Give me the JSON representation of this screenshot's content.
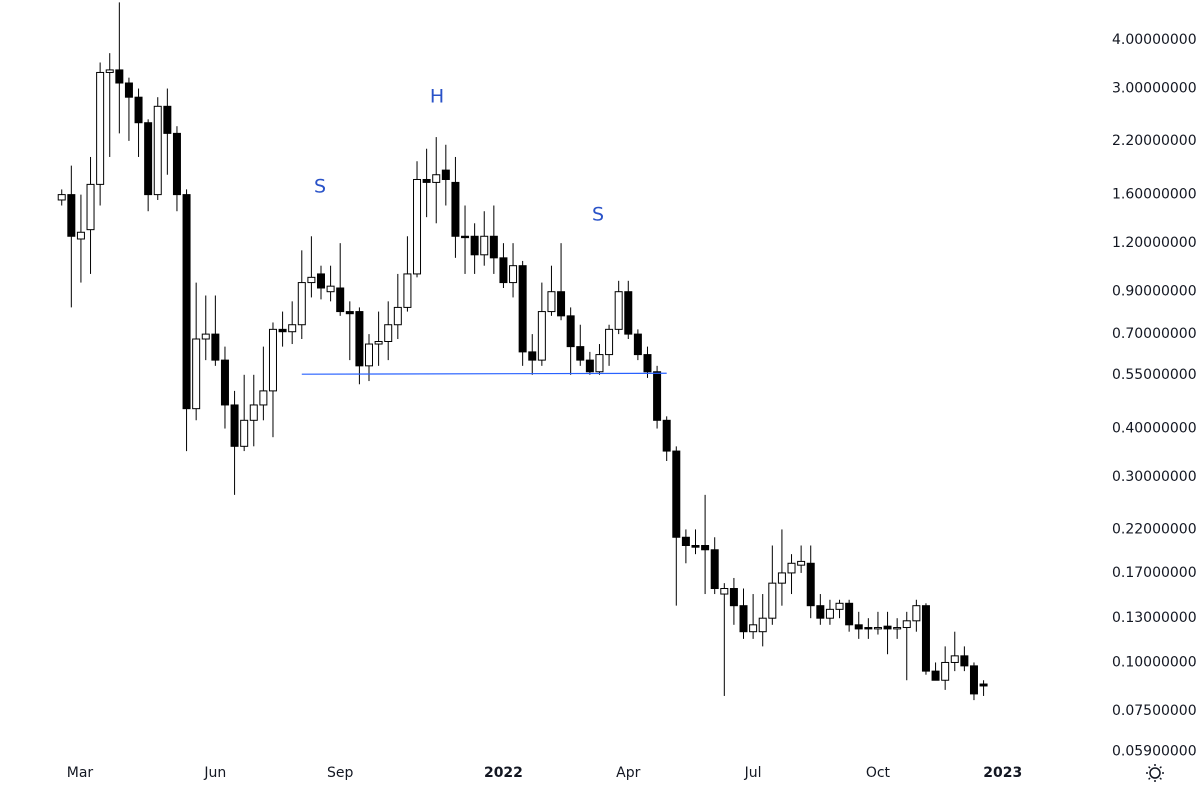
{
  "chart_data": {
    "type": "candlestick",
    "log_y": true,
    "ylim": [
      0.0561,
      5.07
    ],
    "yticks": [
      {
        "value": 4,
        "label": "4.00000000"
      },
      {
        "value": 3,
        "label": "3.00000000"
      },
      {
        "value": 2.2,
        "label": "2.20000000"
      },
      {
        "value": 1.6,
        "label": "1.60000000"
      },
      {
        "value": 1.2,
        "label": "1.20000000"
      },
      {
        "value": 0.9,
        "label": "0.90000000"
      },
      {
        "value": 0.7,
        "label": "0.70000000"
      },
      {
        "value": 0.55,
        "label": "0.55000000"
      },
      {
        "value": 0.4,
        "label": "0.40000000"
      },
      {
        "value": 0.3,
        "label": "0.30000000"
      },
      {
        "value": 0.22,
        "label": "0.22000000"
      },
      {
        "value": 0.17,
        "label": "0.17000000"
      },
      {
        "value": 0.13,
        "label": "0.13000000"
      },
      {
        "value": 0.1,
        "label": "0.10000000"
      },
      {
        "value": 0.075,
        "label": "0.07500000"
      },
      {
        "value": 0.059,
        "label": "0.05900000"
      }
    ],
    "xlim": [
      -0.7,
      105
    ],
    "xticks": [
      {
        "value": 1.9,
        "label": "Mar"
      },
      {
        "value": 16,
        "label": "Jun"
      },
      {
        "value": 29,
        "label": "Sep"
      },
      {
        "value": 46,
        "label": "2022"
      },
      {
        "value": 59,
        "label": "Apr"
      },
      {
        "value": 72,
        "label": "Jul"
      },
      {
        "value": 85,
        "label": "Oct"
      },
      {
        "value": 98,
        "label": "2023"
      }
    ],
    "up_color": "#ffffff",
    "down_color": "#000000",
    "wick_color": "#000000",
    "open": [
      1.55,
      1.6,
      1.23,
      1.3,
      1.7,
      3.3,
      3.35,
      3.1,
      2.85,
      2.45,
      1.6,
      2.7,
      2.3,
      1.6,
      0.45,
      0.68,
      0.7,
      0.6,
      0.46,
      0.36,
      0.42,
      0.46,
      0.5,
      0.72,
      0.71,
      0.74,
      0.95,
      1.0,
      0.9,
      0.92,
      0.8,
      0.8,
      0.58,
      0.66,
      0.67,
      0.74,
      0.82,
      1.0,
      1.75,
      1.72,
      1.85,
      1.72,
      1.25,
      1.25,
      1.12,
      1.25,
      1.1,
      0.95,
      1.05,
      0.63,
      0.6,
      0.8,
      0.9,
      0.78,
      0.65,
      0.6,
      0.56,
      0.62,
      0.72,
      0.9,
      0.7,
      0.62,
      0.56,
      0.42,
      0.35,
      0.21,
      0.2,
      0.2,
      0.195,
      0.15,
      0.155,
      0.14,
      0.12,
      0.12,
      0.13,
      0.16,
      0.17,
      0.178,
      0.18,
      0.14,
      0.13,
      0.137,
      0.142,
      0.125,
      0.123,
      0.122,
      0.124,
      0.122,
      0.123,
      0.128,
      0.14,
      0.095,
      0.09,
      0.1,
      0.104,
      0.098,
      0.088
    ],
    "high": [
      1.65,
      1.9,
      1.6,
      2.0,
      3.5,
      3.7,
      5.0,
      3.2,
      3.0,
      2.5,
      2.85,
      3.0,
      2.4,
      1.65,
      0.95,
      0.88,
      0.88,
      0.65,
      0.5,
      0.55,
      0.55,
      0.65,
      0.75,
      0.8,
      0.85,
      1.15,
      1.25,
      1.05,
      1.05,
      1.2,
      0.85,
      0.82,
      0.7,
      0.8,
      0.85,
      1.0,
      1.25,
      1.95,
      2.1,
      2.25,
      2.15,
      2.0,
      1.5,
      1.35,
      1.45,
      1.5,
      1.2,
      1.2,
      1.08,
      0.7,
      0.95,
      1.05,
      1.2,
      0.82,
      0.74,
      0.63,
      0.66,
      0.74,
      0.96,
      0.96,
      0.72,
      0.65,
      0.58,
      0.43,
      0.36,
      0.22,
      0.22,
      0.27,
      0.21,
      0.16,
      0.165,
      0.155,
      0.15,
      0.15,
      0.2,
      0.22,
      0.19,
      0.2,
      0.2,
      0.15,
      0.145,
      0.145,
      0.145,
      0.135,
      0.13,
      0.135,
      0.135,
      0.13,
      0.135,
      0.145,
      0.142,
      0.1,
      0.11,
      0.12,
      0.11,
      0.1,
      0.09
    ],
    "low": [
      1.5,
      0.82,
      0.95,
      1.0,
      1.5,
      2.0,
      2.3,
      2.2,
      2.0,
      1.45,
      1.55,
      1.8,
      1.45,
      0.35,
      0.42,
      0.6,
      0.58,
      0.4,
      0.27,
      0.35,
      0.36,
      0.42,
      0.38,
      0.65,
      0.66,
      0.68,
      0.87,
      0.86,
      0.85,
      0.78,
      0.6,
      0.52,
      0.53,
      0.58,
      0.6,
      0.68,
      0.8,
      0.98,
      1.4,
      1.35,
      1.5,
      1.1,
      1.0,
      1.0,
      1.05,
      1.0,
      0.92,
      0.87,
      0.58,
      0.55,
      0.58,
      0.78,
      0.76,
      0.55,
      0.58,
      0.55,
      0.55,
      0.58,
      0.7,
      0.68,
      0.6,
      0.54,
      0.4,
      0.33,
      0.14,
      0.18,
      0.19,
      0.15,
      0.15,
      0.082,
      0.125,
      0.115,
      0.115,
      0.11,
      0.125,
      0.14,
      0.15,
      0.17,
      0.13,
      0.125,
      0.125,
      0.13,
      0.12,
      0.115,
      0.115,
      0.118,
      0.105,
      0.115,
      0.09,
      0.12,
      0.093,
      0.09,
      0.085,
      0.095,
      0.095,
      0.08,
      0.082
    ],
    "close": [
      1.6,
      1.25,
      1.28,
      1.7,
      3.3,
      3.35,
      3.1,
      2.85,
      2.45,
      1.6,
      2.7,
      2.3,
      1.6,
      0.45,
      0.68,
      0.7,
      0.6,
      0.46,
      0.36,
      0.42,
      0.46,
      0.5,
      0.72,
      0.71,
      0.74,
      0.95,
      0.98,
      0.92,
      0.93,
      0.8,
      0.79,
      0.58,
      0.66,
      0.67,
      0.74,
      0.82,
      1.0,
      1.75,
      1.72,
      1.8,
      1.75,
      1.25,
      1.24,
      1.12,
      1.25,
      1.1,
      0.95,
      1.05,
      0.63,
      0.6,
      0.8,
      0.9,
      0.78,
      0.65,
      0.6,
      0.56,
      0.62,
      0.72,
      0.9,
      0.7,
      0.62,
      0.56,
      0.42,
      0.35,
      0.21,
      0.2,
      0.198,
      0.195,
      0.155,
      0.155,
      0.14,
      0.12,
      0.125,
      0.13,
      0.16,
      0.17,
      0.18,
      0.182,
      0.14,
      0.13,
      0.137,
      0.142,
      0.125,
      0.122,
      0.122,
      0.123,
      0.122,
      0.123,
      0.128,
      0.14,
      0.095,
      0.09,
      0.1,
      0.104,
      0.098,
      0.083,
      0.087
    ],
    "neckline": {
      "x": [
        25,
        63
      ],
      "y": [
        0.552,
        0.555
      ],
      "color": "#2962ff"
    },
    "annotations": [
      "S",
      "H",
      "S"
    ]
  }
}
